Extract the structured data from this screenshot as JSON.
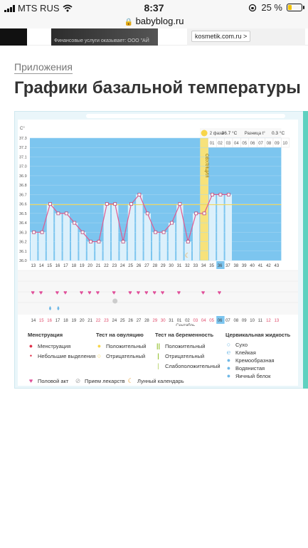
{
  "status": {
    "carrier": "MTS RUS",
    "time": "8:37",
    "battery": "25 %"
  },
  "browser": {
    "url": "babyblog.ru"
  },
  "ad": {
    "caption": "Финансовые услуги оказывает: ООО \"АЙ",
    "button": "kosmetik.com.ru >"
  },
  "breadcrumb": "Приложения",
  "title": "Графики базальной температуры",
  "chart": {
    "unit": "C°",
    "y_ticks": [
      "37.3",
      "37.2",
      "37.1",
      "37.0",
      "36.9",
      "36.8",
      "36.7",
      "36.6",
      "36.5",
      "36.4",
      "36.3",
      "36.2",
      "36.1",
      "36.0"
    ],
    "phase_info": {
      "label": "2 фаза",
      "value": "36.7 °C",
      "diff_label": "Разница t°",
      "diff_value": "0.3 °C"
    },
    "ovulation_label": "ОВУЛЯЦИЯ",
    "phase_days": [
      "01",
      "02",
      "03",
      "04",
      "05",
      "06",
      "07",
      "08",
      "09",
      "10"
    ],
    "cycle_days": [
      "13",
      "14",
      "15",
      "16",
      "17",
      "18",
      "19",
      "20",
      "21",
      "22",
      "23",
      "24",
      "25",
      "26",
      "27",
      "28",
      "29",
      "30",
      "31",
      "32",
      "33",
      "34",
      "35",
      "36",
      "37",
      "38",
      "39",
      "40",
      "41",
      "42",
      "43"
    ],
    "dates": [
      "14",
      "15",
      "16",
      "17",
      "18",
      "19",
      "20",
      "21",
      "22",
      "23",
      "24",
      "25",
      "26",
      "27",
      "28",
      "29",
      "30",
      "31",
      "01",
      "02",
      "03",
      "04",
      "05",
      "06",
      "07",
      "08",
      "09",
      "10",
      "11",
      "12",
      "13"
    ],
    "date_colors": [
      "",
      "#e04a6a",
      "#e04a6a",
      "",
      "",
      "",
      "",
      "",
      "#e04a6a",
      "#e04a6a",
      "",
      "",
      "",
      "",
      "",
      "#e04a6a",
      "#e04a6a",
      "",
      "",
      "",
      "#e04a6a",
      "#e04a6a",
      "#e04a6a",
      "",
      "",
      "",
      "",
      "",
      "",
      "#e04a6a",
      "#e04a6a"
    ],
    "month_label": "Сентябрь",
    "temps": [
      36.3,
      36.3,
      36.6,
      36.5,
      36.5,
      36.4,
      36.3,
      36.2,
      36.2,
      36.6,
      36.6,
      36.2,
      36.6,
      36.7,
      36.5,
      36.3,
      36.3,
      36.4,
      36.6,
      36.2,
      36.5,
      36.5,
      36.7,
      36.7,
      36.7
    ],
    "sex_days": [
      0,
      1,
      3,
      4,
      6,
      7,
      8,
      10,
      12,
      13,
      14,
      15,
      16,
      18,
      21,
      23
    ],
    "menses_days": [
      2,
      3
    ],
    "pill_days": [
      10
    ],
    "moon_day": 19,
    "ovulation_day": 21,
    "today_day": 23
  },
  "legend": {
    "menstruation": {
      "title": "Менструация",
      "items": [
        "Менструация",
        "Небольшие выделения"
      ]
    },
    "ovulation_test": {
      "title": "Тест на овуляцию",
      "items": [
        "Положительный",
        "Отрицательный"
      ]
    },
    "pregnancy_test": {
      "title": "Тест на беременность",
      "items": [
        "Положительный",
        "Отрицательный",
        "Слабоположительный"
      ]
    },
    "cervical": {
      "title": "Цервикальная жидкость",
      "items": [
        "Сухо",
        "Клейкая",
        "Кремообразная",
        "Водянистая",
        "Яичный белок"
      ]
    },
    "bottom": [
      "Половой акт",
      "Прием лекарств",
      "Лунный календарь"
    ],
    "colors": {
      "heart": "#e0509a",
      "blood": "#e0314a",
      "ovulation": "#f7d54a",
      "pregnancy": "#9bc53d",
      "cervical": "#6fb8e6"
    }
  }
}
